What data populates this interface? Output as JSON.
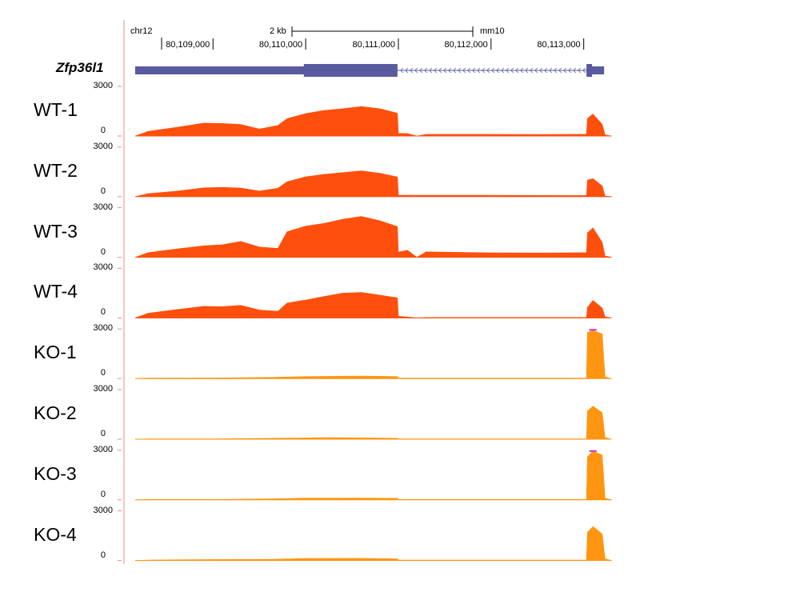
{
  "browser": {
    "chromosome": "chr12",
    "assembly": "mm10",
    "scale_bar_label": "2 kb",
    "gene_name": "Zfp36l1"
  },
  "colors": {
    "wt": "#ff4f0c",
    "ko": "#ff9510",
    "gene": "#5a5aa0",
    "axis": "#f08a8a",
    "clip": "#cc33cc"
  },
  "chart_data": {
    "type": "area",
    "x_range": [
      80108100,
      80113400
    ],
    "x_ticks": [
      {
        "value": 80109000,
        "label": "80,109,000"
      },
      {
        "value": 80110000,
        "label": "80,110,000"
      },
      {
        "value": 80111000,
        "label": "80,111,000"
      },
      {
        "value": 80112000,
        "label": "80,112,000"
      },
      {
        "value": 80113000,
        "label": "80,113,000"
      }
    ],
    "ylim": [
      0,
      3000
    ],
    "y_tick_labels": [
      "3000",
      "0"
    ],
    "gene_model": {
      "name": "Zfp36l1",
      "strand": "-",
      "exons": [
        {
          "start": 80108160,
          "end": 80110990,
          "thick_start": 80109980,
          "thick_end": 80110990
        },
        {
          "start": 80113030,
          "end": 80113220,
          "thick_start": 80113030,
          "thick_end": 80113090
        }
      ]
    },
    "series": [
      {
        "name": "WT-1",
        "group": "wt",
        "points": [
          [
            80108160,
            0
          ],
          [
            80108300,
            280
          ],
          [
            80108600,
            520
          ],
          [
            80108900,
            780
          ],
          [
            80109100,
            760
          ],
          [
            80109300,
            700
          ],
          [
            80109500,
            420
          ],
          [
            80109700,
            640
          ],
          [
            80109800,
            1050
          ],
          [
            80110000,
            1360
          ],
          [
            80110200,
            1550
          ],
          [
            80110400,
            1650
          ],
          [
            80110600,
            1780
          ],
          [
            80110800,
            1650
          ],
          [
            80110990,
            1380
          ],
          [
            80111000,
            160
          ],
          [
            80111100,
            150
          ],
          [
            80111200,
            0
          ],
          [
            80111300,
            100
          ],
          [
            80112000,
            100
          ],
          [
            80112500,
            90
          ],
          [
            80112800,
            100
          ],
          [
            80113030,
            100
          ],
          [
            80113040,
            1060
          ],
          [
            80113100,
            1330
          ],
          [
            80113200,
            700
          ],
          [
            80113230,
            70
          ],
          [
            80113300,
            0
          ]
        ]
      },
      {
        "name": "WT-2",
        "group": "wt",
        "points": [
          [
            80108160,
            0
          ],
          [
            80108300,
            180
          ],
          [
            80108600,
            330
          ],
          [
            80108900,
            530
          ],
          [
            80109100,
            560
          ],
          [
            80109300,
            520
          ],
          [
            80109500,
            340
          ],
          [
            80109700,
            510
          ],
          [
            80109800,
            900
          ],
          [
            80110000,
            1200
          ],
          [
            80110200,
            1350
          ],
          [
            80110400,
            1450
          ],
          [
            80110600,
            1560
          ],
          [
            80110800,
            1420
          ],
          [
            80110990,
            1190
          ],
          [
            80111000,
            90
          ],
          [
            80111200,
            80
          ],
          [
            80112000,
            80
          ],
          [
            80112800,
            70
          ],
          [
            80113030,
            70
          ],
          [
            80113040,
            1000
          ],
          [
            80113100,
            1090
          ],
          [
            80113200,
            650
          ],
          [
            80113230,
            40
          ],
          [
            80113300,
            0
          ]
        ]
      },
      {
        "name": "WT-3",
        "group": "wt",
        "points": [
          [
            80108160,
            0
          ],
          [
            80108300,
            280
          ],
          [
            80108600,
            500
          ],
          [
            80108900,
            690
          ],
          [
            80109100,
            760
          ],
          [
            80109300,
            960
          ],
          [
            80109500,
            620
          ],
          [
            80109700,
            540
          ],
          [
            80109800,
            1550
          ],
          [
            80110000,
            1880
          ],
          [
            80110200,
            2050
          ],
          [
            80110400,
            2300
          ],
          [
            80110600,
            2470
          ],
          [
            80110800,
            2210
          ],
          [
            80110990,
            1860
          ],
          [
            80111000,
            320
          ],
          [
            80111100,
            420
          ],
          [
            80111200,
            0
          ],
          [
            80111300,
            330
          ],
          [
            80112000,
            270
          ],
          [
            80112500,
            260
          ],
          [
            80112800,
            270
          ],
          [
            80113030,
            280
          ],
          [
            80113040,
            1480
          ],
          [
            80113100,
            1780
          ],
          [
            80113200,
            900
          ],
          [
            80113230,
            80
          ],
          [
            80113300,
            0
          ]
        ]
      },
      {
        "name": "WT-4",
        "group": "wt",
        "points": [
          [
            80108160,
            0
          ],
          [
            80108300,
            280
          ],
          [
            80108600,
            500
          ],
          [
            80108900,
            700
          ],
          [
            80109100,
            680
          ],
          [
            80109300,
            760
          ],
          [
            80109500,
            480
          ],
          [
            80109700,
            400
          ],
          [
            80109800,
            900
          ],
          [
            80110000,
            1080
          ],
          [
            80110200,
            1300
          ],
          [
            80110400,
            1500
          ],
          [
            80110600,
            1540
          ],
          [
            80110800,
            1380
          ],
          [
            80110990,
            1220
          ],
          [
            80111000,
            100
          ],
          [
            80111100,
            60
          ],
          [
            80111200,
            0
          ],
          [
            80111300,
            30
          ],
          [
            80112000,
            30
          ],
          [
            80112500,
            30
          ],
          [
            80112800,
            30
          ],
          [
            80113030,
            30
          ],
          [
            80113040,
            640
          ],
          [
            80113100,
            1060
          ],
          [
            80113200,
            600
          ],
          [
            80113230,
            70
          ],
          [
            80113300,
            0
          ]
        ]
      },
      {
        "name": "KO-1",
        "group": "ko",
        "points": [
          [
            80108160,
            0
          ],
          [
            80108300,
            30
          ],
          [
            80109000,
            40
          ],
          [
            80109600,
            70
          ],
          [
            80110000,
            120
          ],
          [
            80110600,
            150
          ],
          [
            80110990,
            120
          ],
          [
            80111000,
            30
          ],
          [
            80112000,
            30
          ],
          [
            80113030,
            30
          ],
          [
            80113040,
            2800
          ],
          [
            80113100,
            2920
          ],
          [
            80113200,
            2700
          ],
          [
            80113230,
            100
          ],
          [
            80113300,
            0
          ]
        ]
      },
      {
        "name": "KO-2",
        "group": "ko",
        "points": [
          [
            80108160,
            0
          ],
          [
            80108300,
            20
          ],
          [
            80109000,
            20
          ],
          [
            80109900,
            70
          ],
          [
            80110200,
            90
          ],
          [
            80110600,
            80
          ],
          [
            80110990,
            60
          ],
          [
            80111000,
            20
          ],
          [
            80111300,
            20
          ],
          [
            80112000,
            20
          ],
          [
            80113030,
            20
          ],
          [
            80113040,
            1700
          ],
          [
            80113100,
            2000
          ],
          [
            80113200,
            1600
          ],
          [
            80113230,
            100
          ],
          [
            80113300,
            0
          ]
        ]
      },
      {
        "name": "KO-3",
        "group": "ko",
        "points": [
          [
            80108160,
            0
          ],
          [
            80108300,
            20
          ],
          [
            80109000,
            20
          ],
          [
            80109600,
            60
          ],
          [
            80110000,
            100
          ],
          [
            80110600,
            110
          ],
          [
            80110990,
            90
          ],
          [
            80111000,
            20
          ],
          [
            80112000,
            20
          ],
          [
            80113030,
            20
          ],
          [
            80113040,
            2600
          ],
          [
            80113100,
            2950
          ],
          [
            80113200,
            2700
          ],
          [
            80113230,
            100
          ],
          [
            80113300,
            0
          ]
        ]
      },
      {
        "name": "KO-4",
        "group": "ko",
        "points": [
          [
            80108160,
            0
          ],
          [
            80108300,
            30
          ],
          [
            80109000,
            60
          ],
          [
            80109600,
            70
          ],
          [
            80110000,
            120
          ],
          [
            80110600,
            130
          ],
          [
            80110990,
            100
          ],
          [
            80111000,
            30
          ],
          [
            80112000,
            30
          ],
          [
            80113030,
            30
          ],
          [
            80113040,
            1700
          ],
          [
            80113100,
            2050
          ],
          [
            80113200,
            1600
          ],
          [
            80113230,
            100
          ],
          [
            80113300,
            0
          ]
        ]
      }
    ]
  }
}
